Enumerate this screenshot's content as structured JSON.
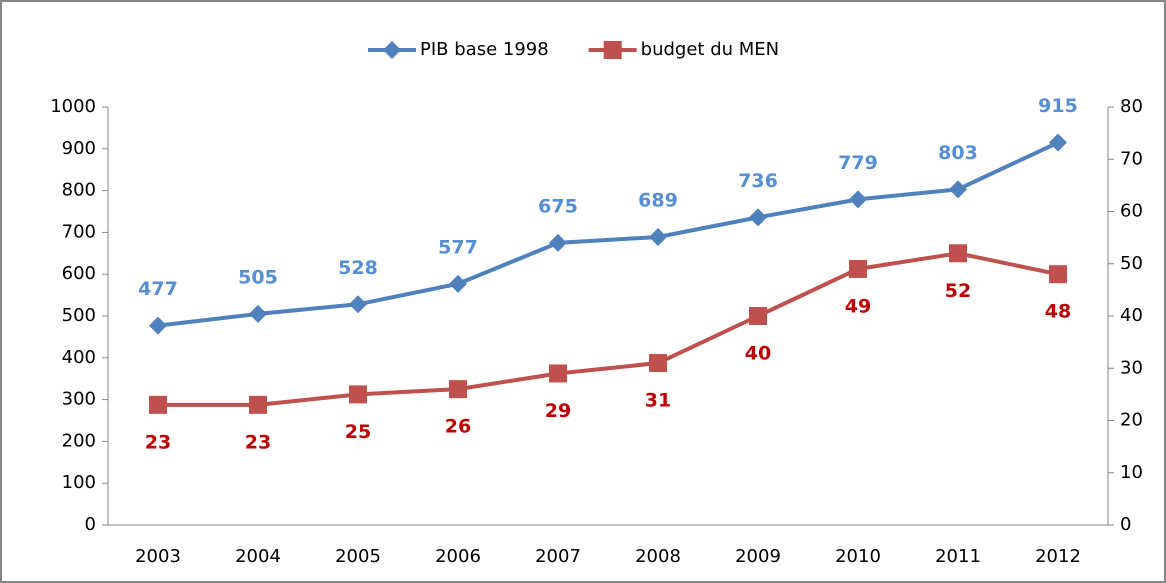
{
  "chart_data": {
    "type": "line",
    "categories": [
      "2003",
      "2004",
      "2005",
      "2006",
      "2007",
      "2008",
      "2009",
      "2010",
      "2011",
      "2012"
    ],
    "series": [
      {
        "name": "PIB base 1998",
        "color": "#4f81bd",
        "label_color": "#558ed5",
        "marker": "diamond",
        "label_position": "above",
        "values": [
          477,
          505,
          528,
          577,
          675,
          689,
          736,
          779,
          803,
          915
        ]
      },
      {
        "name": "budget du MEN",
        "color": "#c0504d",
        "label_color": "#c00000",
        "marker": "square",
        "label_position": "below",
        "axis": "y2",
        "values": [
          23,
          23,
          25,
          26,
          29,
          31,
          40,
          49,
          52,
          48
        ]
      }
    ],
    "ylim": [
      0,
      1000
    ],
    "yticks": [
      0,
      100,
      200,
      300,
      400,
      500,
      600,
      700,
      800,
      900,
      1000
    ],
    "y2lim": [
      0,
      80
    ],
    "y2ticks": [
      0,
      10,
      20,
      30,
      40,
      50,
      60,
      70,
      80
    ],
    "legend": "top"
  }
}
